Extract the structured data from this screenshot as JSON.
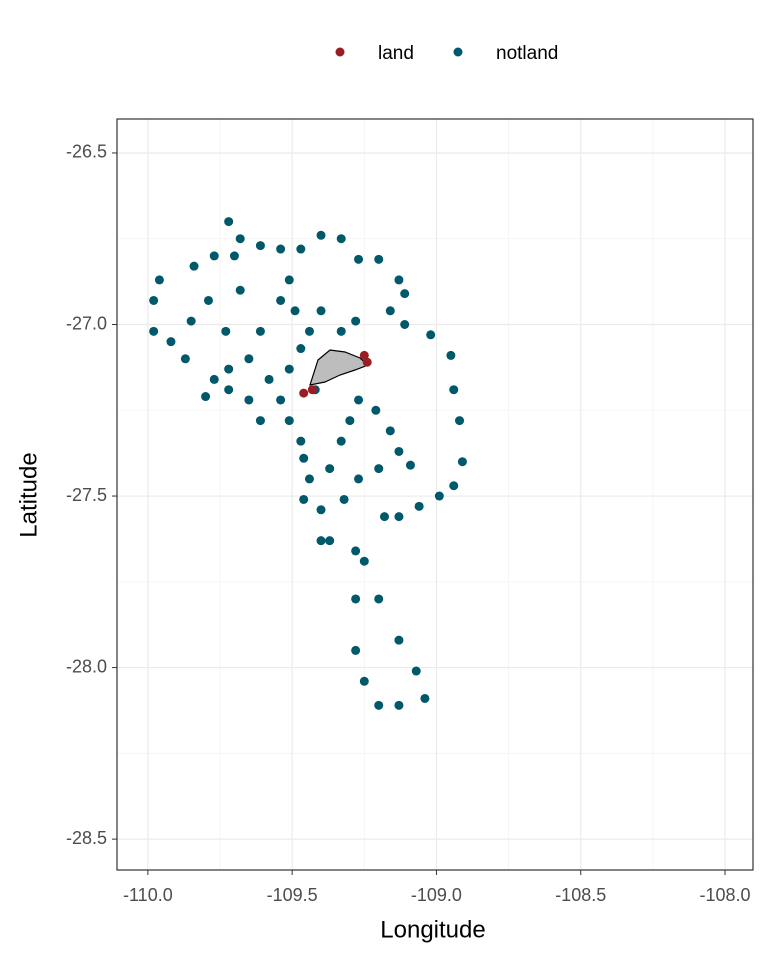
{
  "chart_data": {
    "type": "scatter",
    "x_label": "Longitude",
    "y_label": "Latitude",
    "xlim": [
      -110.107,
      -107.903
    ],
    "ylim": [
      -28.59,
      -26.401
    ],
    "xticks": [
      {
        "value": -110,
        "label": "-110.0"
      },
      -109.5,
      {
        "value": -109,
        "label": "-109.0"
      },
      -108.5,
      {
        "value": -108,
        "label": "-108.0"
      }
    ],
    "yticks": [
      -26.5,
      {
        "value": -27,
        "label": "-27.0"
      },
      -27.5,
      {
        "value": -28,
        "label": "-28.0"
      },
      -28.5
    ],
    "grid": true,
    "legend": "top",
    "series": [
      {
        "name": "land",
        "color": "#9b1c22",
        "x": [
          -109.46,
          -109.43,
          -109.24,
          -109.25
        ],
        "values": [
          -27.2,
          -27.19,
          -27.11,
          -27.09
        ]
      },
      {
        "name": "notland",
        "color": "#00596b",
        "x": [
          -109.11,
          -109.02,
          -108.95,
          -108.94,
          -108.92,
          -108.91,
          -108.94,
          -108.99,
          -109.06,
          -109.13,
          -109.18,
          -109.28,
          -109.28,
          -109.28,
          -109.25,
          -109.2,
          -109.13,
          -109.04,
          -109.07,
          -109.13,
          -109.2,
          -109.25,
          -109.4,
          -109.47,
          -109.4,
          -109.33,
          -109.27,
          -109.2,
          -109.13,
          -109.11,
          -109.16,
          -109.72,
          -109.68,
          -109.61,
          -109.54,
          -109.51,
          -109.49,
          -109.96,
          -109.98,
          -109.98,
          -109.92,
          -109.85,
          -109.79,
          -109.68,
          -109.54,
          -109.84,
          -109.77,
          -109.7,
          -109.8,
          -109.77,
          -109.72,
          -109.65,
          -109.87,
          -109.73,
          -109.61,
          -109.58,
          -109.54,
          -109.51,
          -109.47,
          -109.46,
          -109.44,
          -109.46,
          -109.4,
          -109.37,
          -109.33,
          -109.3,
          -109.27,
          -109.21,
          -109.16,
          -109.13,
          -109.09,
          -109.2,
          -109.27,
          -109.32,
          -109.37,
          -109.47,
          -109.44,
          -109.4,
          -109.33,
          -109.28,
          -109.65,
          -109.61,
          -109.72,
          -109.51,
          -109.42
        ],
        "values": [
          -27.0,
          -27.03,
          -27.09,
          -27.19,
          -27.28,
          -27.4,
          -27.47,
          -27.5,
          -27.53,
          -27.56,
          -27.56,
          -27.66,
          -27.8,
          -27.95,
          -28.04,
          -28.11,
          -28.11,
          -28.09,
          -28.01,
          -27.92,
          -27.8,
          -27.69,
          -27.63,
          -26.78,
          -26.74,
          -26.75,
          -26.81,
          -26.81,
          -26.87,
          -26.91,
          -26.96,
          -26.7,
          -26.75,
          -26.77,
          -26.78,
          -26.87,
          -26.96,
          -26.87,
          -26.93,
          -27.02,
          -27.05,
          -26.99,
          -26.93,
          -26.9,
          -26.93,
          -26.83,
          -26.8,
          -26.8,
          -27.21,
          -27.16,
          -27.13,
          -27.1,
          -27.1,
          -27.02,
          -27.02,
          -27.16,
          -27.22,
          -27.28,
          -27.34,
          -27.39,
          -27.45,
          -27.51,
          -27.54,
          -27.42,
          -27.34,
          -27.28,
          -27.22,
          -27.25,
          -27.31,
          -27.37,
          -27.41,
          -27.42,
          -27.45,
          -27.51,
          -27.63,
          -27.07,
          -27.02,
          -26.96,
          -27.02,
          -26.99,
          -27.22,
          -27.28,
          -27.19,
          -27.13,
          -27.19
        ]
      }
    ]
  }
}
